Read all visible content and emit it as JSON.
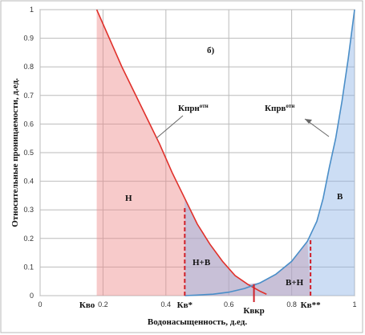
{
  "chart_data": {
    "type": "line",
    "panel_label": "б)",
    "xlabel": "Водонасыщенность, д.ед.",
    "ylabel": "Относительные проницаемости, д.ед.",
    "xlim": [
      0,
      1
    ],
    "ylim": [
      0,
      1
    ],
    "xticks": [
      0,
      0.2,
      0.4,
      0.6,
      0.8,
      1
    ],
    "yticks": [
      0,
      0.1,
      0.2,
      0.3,
      0.4,
      0.5,
      0.6,
      0.7,
      0.8,
      0.9,
      1
    ],
    "grid": true,
    "series": [
      {
        "name": "Кпрн",
        "sup": "отн",
        "color": "#e0302a",
        "x": [
          0.18,
          0.22,
          0.26,
          0.3,
          0.34,
          0.38,
          0.42,
          0.46,
          0.5,
          0.54,
          0.58,
          0.62,
          0.66,
          0.7,
          0.72
        ],
        "values": [
          1,
          0.9,
          0.8,
          0.71,
          0.62,
          0.53,
          0.43,
          0.34,
          0.25,
          0.18,
          0.12,
          0.07,
          0.04,
          0.015,
          0.005
        ]
      },
      {
        "name": "Кпрв",
        "sup": "отн",
        "color": "#4a8ec8",
        "x": [
          0.46,
          0.5,
          0.55,
          0.6,
          0.65,
          0.7,
          0.75,
          0.8,
          0.85,
          0.88,
          0.9,
          0.92,
          0.94,
          0.96,
          0.98,
          1
        ],
        "values": [
          0,
          0.002,
          0.005,
          0.012,
          0.025,
          0.045,
          0.075,
          0.12,
          0.19,
          0.26,
          0.34,
          0.45,
          0.55,
          0.68,
          0.83,
          1
        ]
      }
    ],
    "markers": [
      {
        "label": "Кво",
        "x": 0.18
      },
      {
        "label": "Кв*",
        "x": 0.46,
        "y": 0.31
      },
      {
        "label": "Квкр",
        "x": 0.68
      },
      {
        "label": "Кв**",
        "x": 0.86,
        "y": 0.2
      }
    ],
    "regions": [
      "Н",
      "Н+В",
      "В+Н",
      "В"
    ]
  }
}
